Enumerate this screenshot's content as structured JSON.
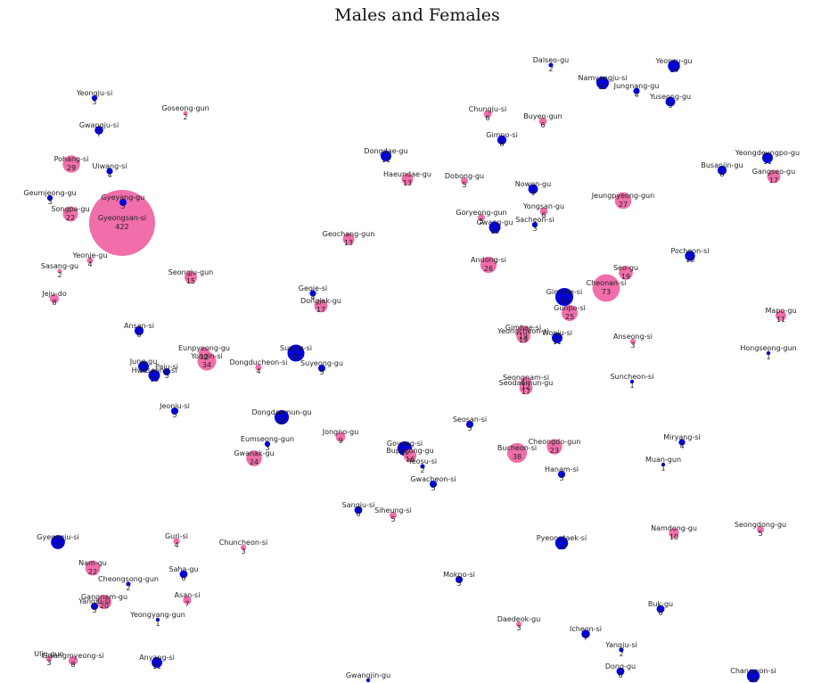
{
  "chart_data": {
    "type": "scatter",
    "title": "Males and Females",
    "xlim": [
      0,
      912
    ],
    "ylim": [
      0,
      766
    ],
    "grid": false,
    "legend": "none",
    "colors": {
      "female": "#f06eaa",
      "male": "#0000dd"
    },
    "points": [
      {
        "name": "Dalseo-gu",
        "value": "2",
        "group": "male",
        "x": 618,
        "y": 73
      },
      {
        "name": "Yeonsu-gu",
        "value": "14",
        "group": "male",
        "x": 756,
        "y": 74
      },
      {
        "name": "Namyangju-si",
        "value": "15",
        "group": "male",
        "x": 676,
        "y": 93
      },
      {
        "name": "Jungnang-gu",
        "value": "4",
        "group": "male",
        "x": 714,
        "y": 102
      },
      {
        "name": "Yuseong-gu",
        "value": "9",
        "group": "male",
        "x": 752,
        "y": 114
      },
      {
        "name": "Yeongju-si",
        "value": "3",
        "group": "male",
        "x": 106,
        "y": 110
      },
      {
        "name": "Goseong-gun",
        "value": "2",
        "group": "female",
        "x": 208,
        "y": 127
      },
      {
        "name": "Chungju-si",
        "value": "6",
        "group": "female",
        "x": 547,
        "y": 128
      },
      {
        "name": "Buyeo-gun",
        "value": "6",
        "group": "female",
        "x": 609,
        "y": 136
      },
      {
        "name": "Gwangju-si",
        "value": "7",
        "group": "male",
        "x": 111,
        "y": 146
      },
      {
        "name": "Gimpo-si",
        "value": "8",
        "group": "male",
        "x": 563,
        "y": 157
      },
      {
        "name": "Dongdae-gu",
        "value": "11",
        "group": "male",
        "x": 433,
        "y": 175
      },
      {
        "name": "Yeongdeungpo-gu",
        "value": "11",
        "group": "male",
        "x": 861,
        "y": 177
      },
      {
        "name": "Pohang-si",
        "value": "29",
        "group": "female",
        "x": 80,
        "y": 184
      },
      {
        "name": "Uiwang-si",
        "value": "4",
        "group": "male",
        "x": 123,
        "y": 192
      },
      {
        "name": "Busanjin-gu",
        "value": "8",
        "group": "male",
        "x": 810,
        "y": 191
      },
      {
        "name": "Gangseo-gu",
        "value": "17",
        "group": "female",
        "x": 868,
        "y": 198
      },
      {
        "name": "Haeundae-gu",
        "value": "13",
        "group": "female",
        "x": 457,
        "y": 201
      },
      {
        "name": "Dobong-gu",
        "value": "5",
        "group": "female",
        "x": 521,
        "y": 203
      },
      {
        "name": "Nowon-gu",
        "value": "9",
        "group": "male",
        "x": 598,
        "y": 212
      },
      {
        "name": "Jeungpyeong-gun",
        "value": "27",
        "group": "female",
        "x": 699,
        "y": 225
      },
      {
        "name": "Geumjeong-gu",
        "value": "3",
        "group": "male",
        "x": 56,
        "y": 222
      },
      {
        "name": "Gyeyang-gu",
        "value": "5",
        "group": "male",
        "x": 138,
        "y": 227
      },
      {
        "name": "Songpa-gu",
        "value": "22",
        "group": "female",
        "x": 79,
        "y": 240
      },
      {
        "name": "Gyeongsan-si",
        "value": "422",
        "group": "female",
        "x": 137,
        "y": 250
      },
      {
        "name": "Yongsan-gu",
        "value": "6",
        "group": "female",
        "x": 610,
        "y": 237
      },
      {
        "name": "Goryeong-gun",
        "value": "5",
        "group": "female",
        "x": 540,
        "y": 244
      },
      {
        "name": "Sacheon-si",
        "value": "3",
        "group": "male",
        "x": 600,
        "y": 252
      },
      {
        "name": "Gwang-gu",
        "value": "13",
        "group": "male",
        "x": 555,
        "y": 255
      },
      {
        "name": "Geochang-gun",
        "value": "13",
        "group": "female",
        "x": 391,
        "y": 268
      },
      {
        "name": "Pocheon-si",
        "value": "10",
        "group": "male",
        "x": 774,
        "y": 287
      },
      {
        "name": "Yeonje-gu",
        "value": "4",
        "group": "female",
        "x": 101,
        "y": 292
      },
      {
        "name": "Andong-si",
        "value": "26",
        "group": "female",
        "x": 548,
        "y": 297
      },
      {
        "name": "Sasang-gu",
        "value": "2",
        "group": "female",
        "x": 67,
        "y": 304
      },
      {
        "name": "Seo-gu",
        "value": "19",
        "group": "female",
        "x": 702,
        "y": 306
      },
      {
        "name": "Seongju-gun",
        "value": "15",
        "group": "female",
        "x": 214,
        "y": 311
      },
      {
        "name": "Cheonan-si",
        "value": "73",
        "group": "female",
        "x": 680,
        "y": 323
      },
      {
        "name": "Geoje-si",
        "value": "4",
        "group": "male",
        "x": 351,
        "y": 329
      },
      {
        "name": "Gimhae-si",
        "value": "31",
        "group": "male",
        "x": 633,
        "y": 333
      },
      {
        "name": "Jeju-do",
        "value": "8",
        "group": "female",
        "x": 61,
        "y": 335
      },
      {
        "name": "Dongjak-gu",
        "value": "17",
        "group": "female",
        "x": 360,
        "y": 343
      },
      {
        "name": "Gunpo-si",
        "value": "25",
        "group": "female",
        "x": 639,
        "y": 351
      },
      {
        "name": "Mapo-gu",
        "value": "11",
        "group": "female",
        "x": 876,
        "y": 354
      },
      {
        "name": "Ansan-si",
        "value": "8",
        "group": "male",
        "x": 156,
        "y": 371
      },
      {
        "name": "Gimhae-si",
        "value": "19",
        "group": "female",
        "x": 587,
        "y": 373
      },
      {
        "name": "Wonju-si",
        "value": "11",
        "group": "male",
        "x": 625,
        "y": 379
      },
      {
        "name": "Anseong-si",
        "value": "3",
        "group": "female",
        "x": 710,
        "y": 383
      },
      {
        "name": "Yeongcheon-si",
        "value": "19",
        "group": "female",
        "x": 587,
        "y": 377
      },
      {
        "name": "Eunpyeong-gu",
        "value": "12",
        "group": "female",
        "x": 229,
        "y": 396
      },
      {
        "name": "Suwon-si",
        "value": "28",
        "group": "male",
        "x": 332,
        "y": 396
      },
      {
        "name": "Hongseong-gun",
        "value": "1",
        "group": "male",
        "x": 862,
        "y": 396
      },
      {
        "name": "Yongin-si",
        "value": "34",
        "group": "female",
        "x": 232,
        "y": 405
      },
      {
        "name": "Dongducheon-si",
        "value": "4",
        "group": "female",
        "x": 290,
        "y": 412
      },
      {
        "name": "Suyeong-gu",
        "value": "5",
        "group": "male",
        "x": 361,
        "y": 413
      },
      {
        "name": "Jung-gu",
        "value": "11",
        "group": "male",
        "x": 161,
        "y": 411
      },
      {
        "name": "Paju-si",
        "value": "5",
        "group": "male",
        "x": 187,
        "y": 417
      },
      {
        "name": "Hwaseong-si",
        "value": "13",
        "group": "male",
        "x": 173,
        "y": 421
      },
      {
        "name": "Seongnam-si",
        "value": "12",
        "group": "female",
        "x": 590,
        "y": 429
      },
      {
        "name": "Seodaemun-gu",
        "value": "17",
        "group": "female",
        "x": 590,
        "y": 435
      },
      {
        "name": "Suncheon-si",
        "value": "1",
        "group": "male",
        "x": 709,
        "y": 428
      },
      {
        "name": "Jeonju-si",
        "value": "5",
        "group": "male",
        "x": 196,
        "y": 461
      },
      {
        "name": "Dongdaemun-gu",
        "value": "20",
        "group": "male",
        "x": 316,
        "y": 468
      },
      {
        "name": "Seosan-si",
        "value": "5",
        "group": "male",
        "x": 527,
        "y": 476
      },
      {
        "name": "Jongno-gu",
        "value": "9",
        "group": "female",
        "x": 382,
        "y": 490
      },
      {
        "name": "Miryang-si",
        "value": "4",
        "group": "male",
        "x": 765,
        "y": 496
      },
      {
        "name": "Cheongdo-gun",
        "value": "23",
        "group": "female",
        "x": 622,
        "y": 501
      },
      {
        "name": "Eumseong-gun",
        "value": "3",
        "group": "male",
        "x": 300,
        "y": 498
      },
      {
        "name": "Goyang-si",
        "value": "20",
        "group": "male",
        "x": 454,
        "y": 503
      },
      {
        "name": "Bucheon-si",
        "value": "38",
        "group": "female",
        "x": 580,
        "y": 508
      },
      {
        "name": "Bupyeong-gu",
        "value": "16",
        "group": "female",
        "x": 460,
        "y": 511
      },
      {
        "name": "Gwanak-gu",
        "value": "24",
        "group": "female",
        "x": 285,
        "y": 514
      },
      {
        "name": "Yeosu-si",
        "value": "2",
        "group": "male",
        "x": 474,
        "y": 523
      },
      {
        "name": "Muan-gun",
        "value": "1",
        "group": "male",
        "x": 744,
        "y": 521
      },
      {
        "name": "Hanam-si",
        "value": "5",
        "group": "male",
        "x": 630,
        "y": 532
      },
      {
        "name": "Gwacheon-si",
        "value": "5",
        "group": "male",
        "x": 486,
        "y": 543
      },
      {
        "name": "Sangju-si",
        "value": "6",
        "group": "male",
        "x": 402,
        "y": 572
      },
      {
        "name": "Siheung-si",
        "value": "5",
        "group": "female",
        "x": 441,
        "y": 578
      },
      {
        "name": "Seongdong-gu",
        "value": "5",
        "group": "female",
        "x": 853,
        "y": 594
      },
      {
        "name": "Namdong-gu",
        "value": "10",
        "group": "female",
        "x": 756,
        "y": 598
      },
      {
        "name": "Gyeongju-si",
        "value": "19",
        "group": "male",
        "x": 65,
        "y": 608
      },
      {
        "name": "Guri-si",
        "value": "4",
        "group": "female",
        "x": 198,
        "y": 607
      },
      {
        "name": "Pyeongtaek-si",
        "value": "16",
        "group": "male",
        "x": 630,
        "y": 609
      },
      {
        "name": "Chuncheon-si",
        "value": "3",
        "group": "female",
        "x": 273,
        "y": 614
      },
      {
        "name": "Nam-gu",
        "value": "22",
        "group": "female",
        "x": 104,
        "y": 637
      },
      {
        "name": "Saha-gu",
        "value": "6",
        "group": "male",
        "x": 206,
        "y": 644
      },
      {
        "name": "Mokpo-si",
        "value": "5",
        "group": "male",
        "x": 515,
        "y": 650
      },
      {
        "name": "Cheongsong-gun",
        "value": "2",
        "group": "male",
        "x": 144,
        "y": 655
      },
      {
        "name": "Asan-si",
        "value": "7",
        "group": "female",
        "x": 210,
        "y": 673
      },
      {
        "name": "Gangnam-gu",
        "value": "20",
        "group": "female",
        "x": 117,
        "y": 675
      },
      {
        "name": "Yangju-si",
        "value": "5",
        "group": "male",
        "x": 106,
        "y": 680
      },
      {
        "name": "Buk-gu",
        "value": "6",
        "group": "male",
        "x": 741,
        "y": 683
      },
      {
        "name": "Yeongyang-gun",
        "value": "1",
        "group": "male",
        "x": 177,
        "y": 695
      },
      {
        "name": "Daedeok-gu",
        "value": "3",
        "group": "female",
        "x": 582,
        "y": 700
      },
      {
        "name": "Icheon-si",
        "value": "7",
        "group": "male",
        "x": 657,
        "y": 711
      },
      {
        "name": "Yangju-si",
        "value": "2",
        "group": "male",
        "x": 697,
        "y": 729
      },
      {
        "name": "Ulju-gun",
        "value": "3",
        "group": "female",
        "x": 55,
        "y": 739
      },
      {
        "name": "Gwangmyeong-si",
        "value": "8",
        "group": "female",
        "x": 82,
        "y": 741
      },
      {
        "name": "Anyang-si",
        "value": "11",
        "group": "male",
        "x": 176,
        "y": 743
      },
      {
        "name": "Dong-gu",
        "value": "6",
        "group": "male",
        "x": 696,
        "y": 753
      },
      {
        "name": "Changwon-si",
        "value": "16",
        "group": "male",
        "x": 845,
        "y": 758
      },
      {
        "name": "Gwangjin-gu",
        "value": "",
        "group": "male",
        "x": 413,
        "y": 763
      }
    ]
  }
}
